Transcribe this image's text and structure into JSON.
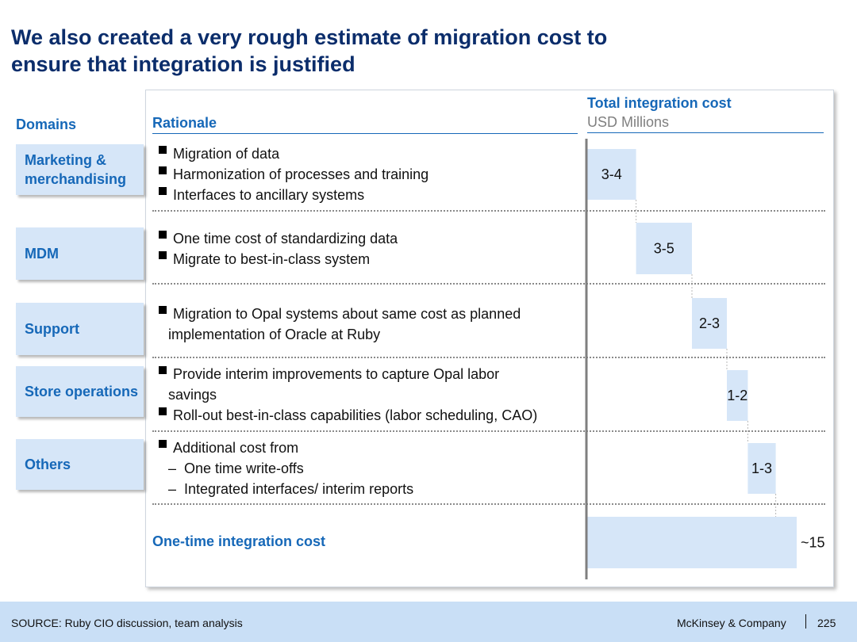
{
  "title": {
    "line1": "We also created a very rough estimate of migration cost to",
    "line2": "ensure that integration is justified"
  },
  "headers": {
    "domains": "Domains",
    "rationale": "Rationale"
  },
  "domains": [
    {
      "line1": "Marketing &",
      "line2": "merchandising"
    },
    {
      "line1": "MDM"
    },
    {
      "line1": "Support"
    },
    {
      "line1": "Store operations"
    },
    {
      "line1": "Others"
    }
  ],
  "rationale": {
    "marketing": [
      "Migration of data",
      "Harmonization of processes and training",
      "Interfaces to ancillary systems"
    ],
    "mdm": [
      "One time cost of standardizing data",
      "Migrate to best-in-class system"
    ],
    "support": {
      "line1": "Migration to Opal systems about same cost as planned",
      "line2": "implementation of Oracle at Ruby"
    },
    "store_ops": {
      "b1_line1": "Provide interim improvements to capture Opal labor",
      "b1_line2": "savings",
      "b2": "Roll-out best-in-class capabilities (labor scheduling, CAO)"
    },
    "others": {
      "b1": "Additional cost from",
      "d1": "One time write-offs",
      "d2": "Integrated interfaces/ interim reports"
    }
  },
  "chart_data": {
    "type": "bar",
    "subtype": "waterfall",
    "title": "Total integration cost",
    "unit_label": "USD Millions",
    "categories": [
      "Marketing & merchandising",
      "MDM",
      "Support",
      "Store operations",
      "Others"
    ],
    "ranges": [
      [
        3,
        4
      ],
      [
        3,
        5
      ],
      [
        2,
        3
      ],
      [
        1,
        2
      ],
      [
        1,
        3
      ]
    ],
    "labels": [
      "3-4",
      "3-5",
      "2-3",
      "1-2",
      "1-3"
    ],
    "total_label_row": "One-time integration cost",
    "total_value": 15,
    "total_display": "~15",
    "bar_color": "#d6e6f8",
    "axis_color": "#7f7f7f"
  },
  "footer": {
    "source": "SOURCE: Ruby CIO discussion, team analysis",
    "company": "McKinsey & Company",
    "page": "225"
  }
}
